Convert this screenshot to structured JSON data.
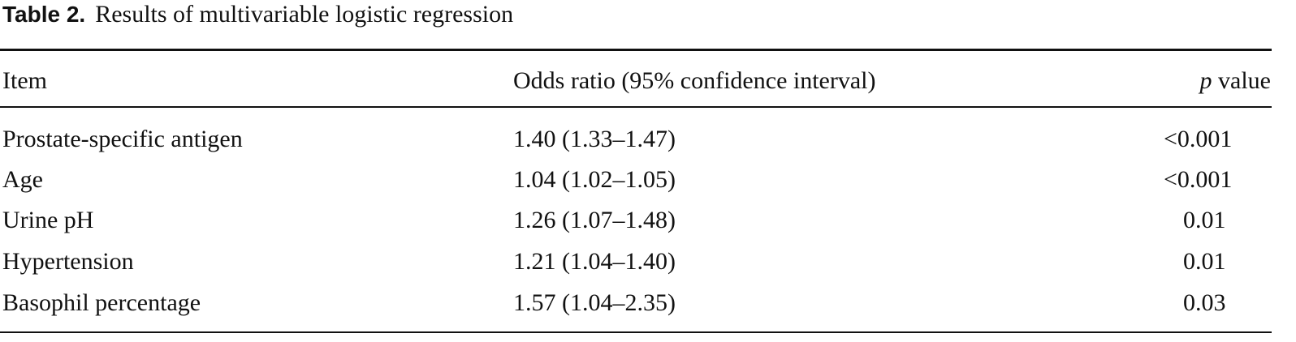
{
  "table": {
    "caption": {
      "label": "Table 2.",
      "text": "Results of multivariable logistic regression"
    },
    "headers": [
      "Item",
      "Odds ratio (95% confidence interval)",
      "p value"
    ],
    "rows": [
      [
        "Prostate-specific antigen",
        "1.40 (1.33–1.47)",
        "<0.001"
      ],
      [
        "Age",
        "1.04 (1.02–1.05)",
        "<0.001"
      ],
      [
        "Urine pH",
        "1.26 (1.07–1.48)",
        "0.01"
      ],
      [
        "Hypertension",
        "1.21 (1.04–1.40)",
        "0.01"
      ],
      [
        "Basophil percentage",
        "1.57 (1.04–2.35)",
        "0.03"
      ]
    ]
  }
}
